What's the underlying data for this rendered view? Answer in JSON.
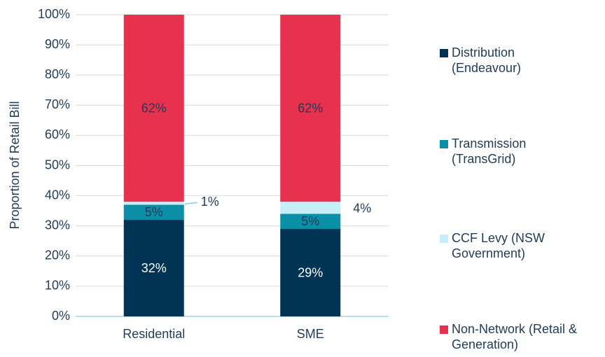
{
  "chart_data": {
    "type": "stacked_bar",
    "y_label": "Proportion of Retail Bill",
    "categories": [
      "Residential",
      "SME"
    ],
    "series": [
      {
        "name": "Distribution (Endeavour)",
        "color": "#003354",
        "values": [
          32,
          29
        ],
        "value_labels": [
          "32%",
          "29%"
        ]
      },
      {
        "name": "Transmission (TransGrid)",
        "color": "#0a8fa6",
        "values": [
          5,
          5
        ],
        "value_labels": [
          "5%",
          "5%"
        ]
      },
      {
        "name": "CCF Levy (NSW Government)",
        "color": "#c6eef8",
        "values": [
          1,
          4
        ],
        "value_labels": [
          "1%",
          "4%"
        ]
      },
      {
        "name": "Non-Network (Retail & Generation)",
        "color": "#e8304f",
        "values": [
          62,
          62
        ],
        "value_labels": [
          "62%",
          "62%"
        ]
      }
    ],
    "ylim": [
      0,
      100
    ],
    "yticks": [
      {
        "value": 0,
        "label": "0%"
      },
      {
        "value": 10,
        "label": "10%"
      },
      {
        "value": 20,
        "label": "20%"
      },
      {
        "value": 30,
        "label": "30%"
      },
      {
        "value": 40,
        "label": "40%"
      },
      {
        "value": 50,
        "label": "50%"
      },
      {
        "value": 60,
        "label": "60%"
      },
      {
        "value": 70,
        "label": "70%"
      },
      {
        "value": 80,
        "label": "80%"
      },
      {
        "value": 90,
        "label": "90%"
      },
      {
        "value": 100,
        "label": "100%"
      }
    ],
    "grid": true,
    "legend": "right"
  }
}
